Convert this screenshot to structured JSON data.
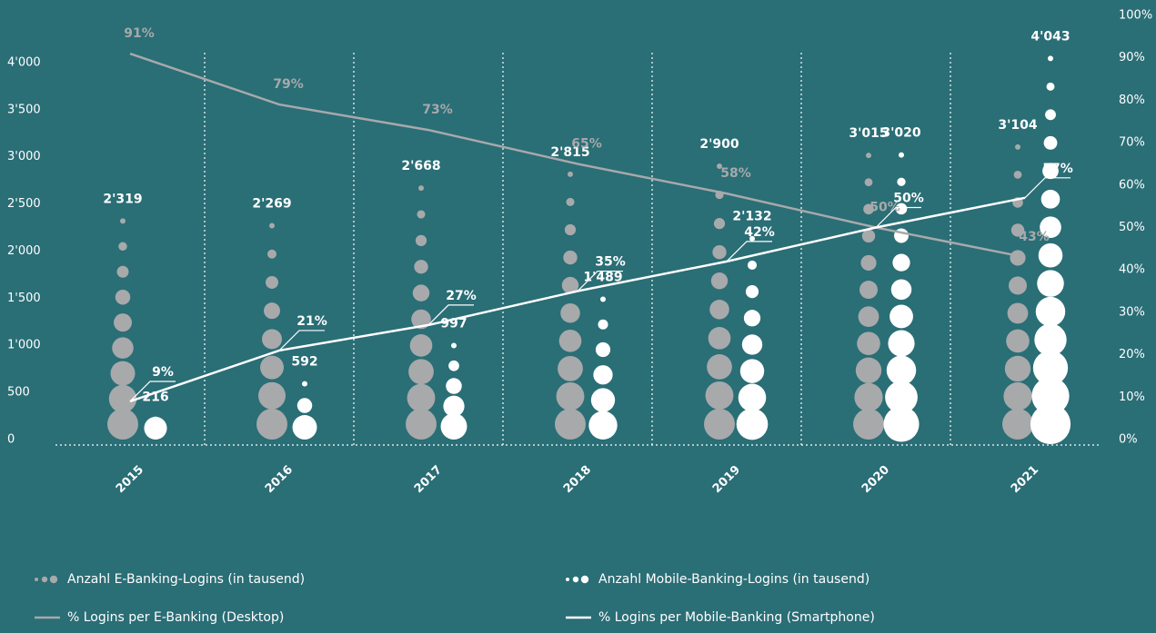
{
  "chart_data": {
    "type": "bar",
    "categories": [
      "2015",
      "2016",
      "2017",
      "2018",
      "2019",
      "2020",
      "2021"
    ],
    "series": [
      {
        "name": "Anzahl E-Banking-Logins (in tausend)",
        "type": "dots",
        "color": "#a7a9ab",
        "values": [
          2319,
          2269,
          2668,
          2815,
          2900,
          3015,
          3104
        ],
        "value_labels": [
          "2'319",
          "2'269",
          "2'668",
          "2'815",
          "2'900",
          "3'015",
          "3'104"
        ]
      },
      {
        "name": "Anzahl Mobile-Banking-Logins (in tausend)",
        "type": "dots",
        "color": "#ffffff",
        "values": [
          216,
          592,
          997,
          1489,
          2132,
          3020,
          4043
        ],
        "value_labels": [
          "216",
          "592",
          "997",
          "1'489",
          "2'132",
          "3'020",
          "4'043"
        ]
      },
      {
        "name": "% Logins per E-Banking (Desktop)",
        "type": "line",
        "axis": "y2",
        "color": "#a7a9ab",
        "values": [
          91,
          79,
          73,
          65,
          58,
          50,
          43
        ],
        "value_labels": [
          "91%",
          "79%",
          "73%",
          "65%",
          "58%",
          "50%",
          "43%"
        ]
      },
      {
        "name": "% Logins per Mobile-Banking (Smartphone)",
        "type": "line",
        "axis": "y2",
        "color": "#ffffff",
        "values": [
          9,
          21,
          27,
          35,
          42,
          50,
          57
        ],
        "value_labels": [
          "9%",
          "21%",
          "27%",
          "35%",
          "42%",
          "50%",
          "57%"
        ]
      }
    ],
    "ylim": [
      0,
      4500
    ],
    "yticks": [
      0,
      500,
      {
        "value": 1000,
        "label": "1'000"
      },
      {
        "value": 1500,
        "label": "1'500"
      },
      {
        "value": 2000,
        "label": "2'000"
      },
      {
        "value": 2500,
        "label": "2'500"
      },
      {
        "value": 3000,
        "label": "3'000"
      },
      {
        "value": 3500,
        "label": "3'500"
      },
      {
        "value": 4000,
        "label": "4'000"
      }
    ],
    "y2lim": [
      0,
      100
    ],
    "y2ticks": [
      {
        "value": 0,
        "label": "0%"
      },
      {
        "value": 10,
        "label": "10%"
      },
      {
        "value": 20,
        "label": "20%"
      },
      {
        "value": 30,
        "label": "30%"
      },
      {
        "value": 40,
        "label": "40%"
      },
      {
        "value": 50,
        "label": "50%"
      },
      {
        "value": 60,
        "label": "60%"
      },
      {
        "value": 70,
        "label": "70%"
      },
      {
        "value": 80,
        "label": "80%"
      },
      {
        "value": 90,
        "label": "90%"
      },
      {
        "value": 100,
        "label": "100%"
      }
    ]
  }
}
